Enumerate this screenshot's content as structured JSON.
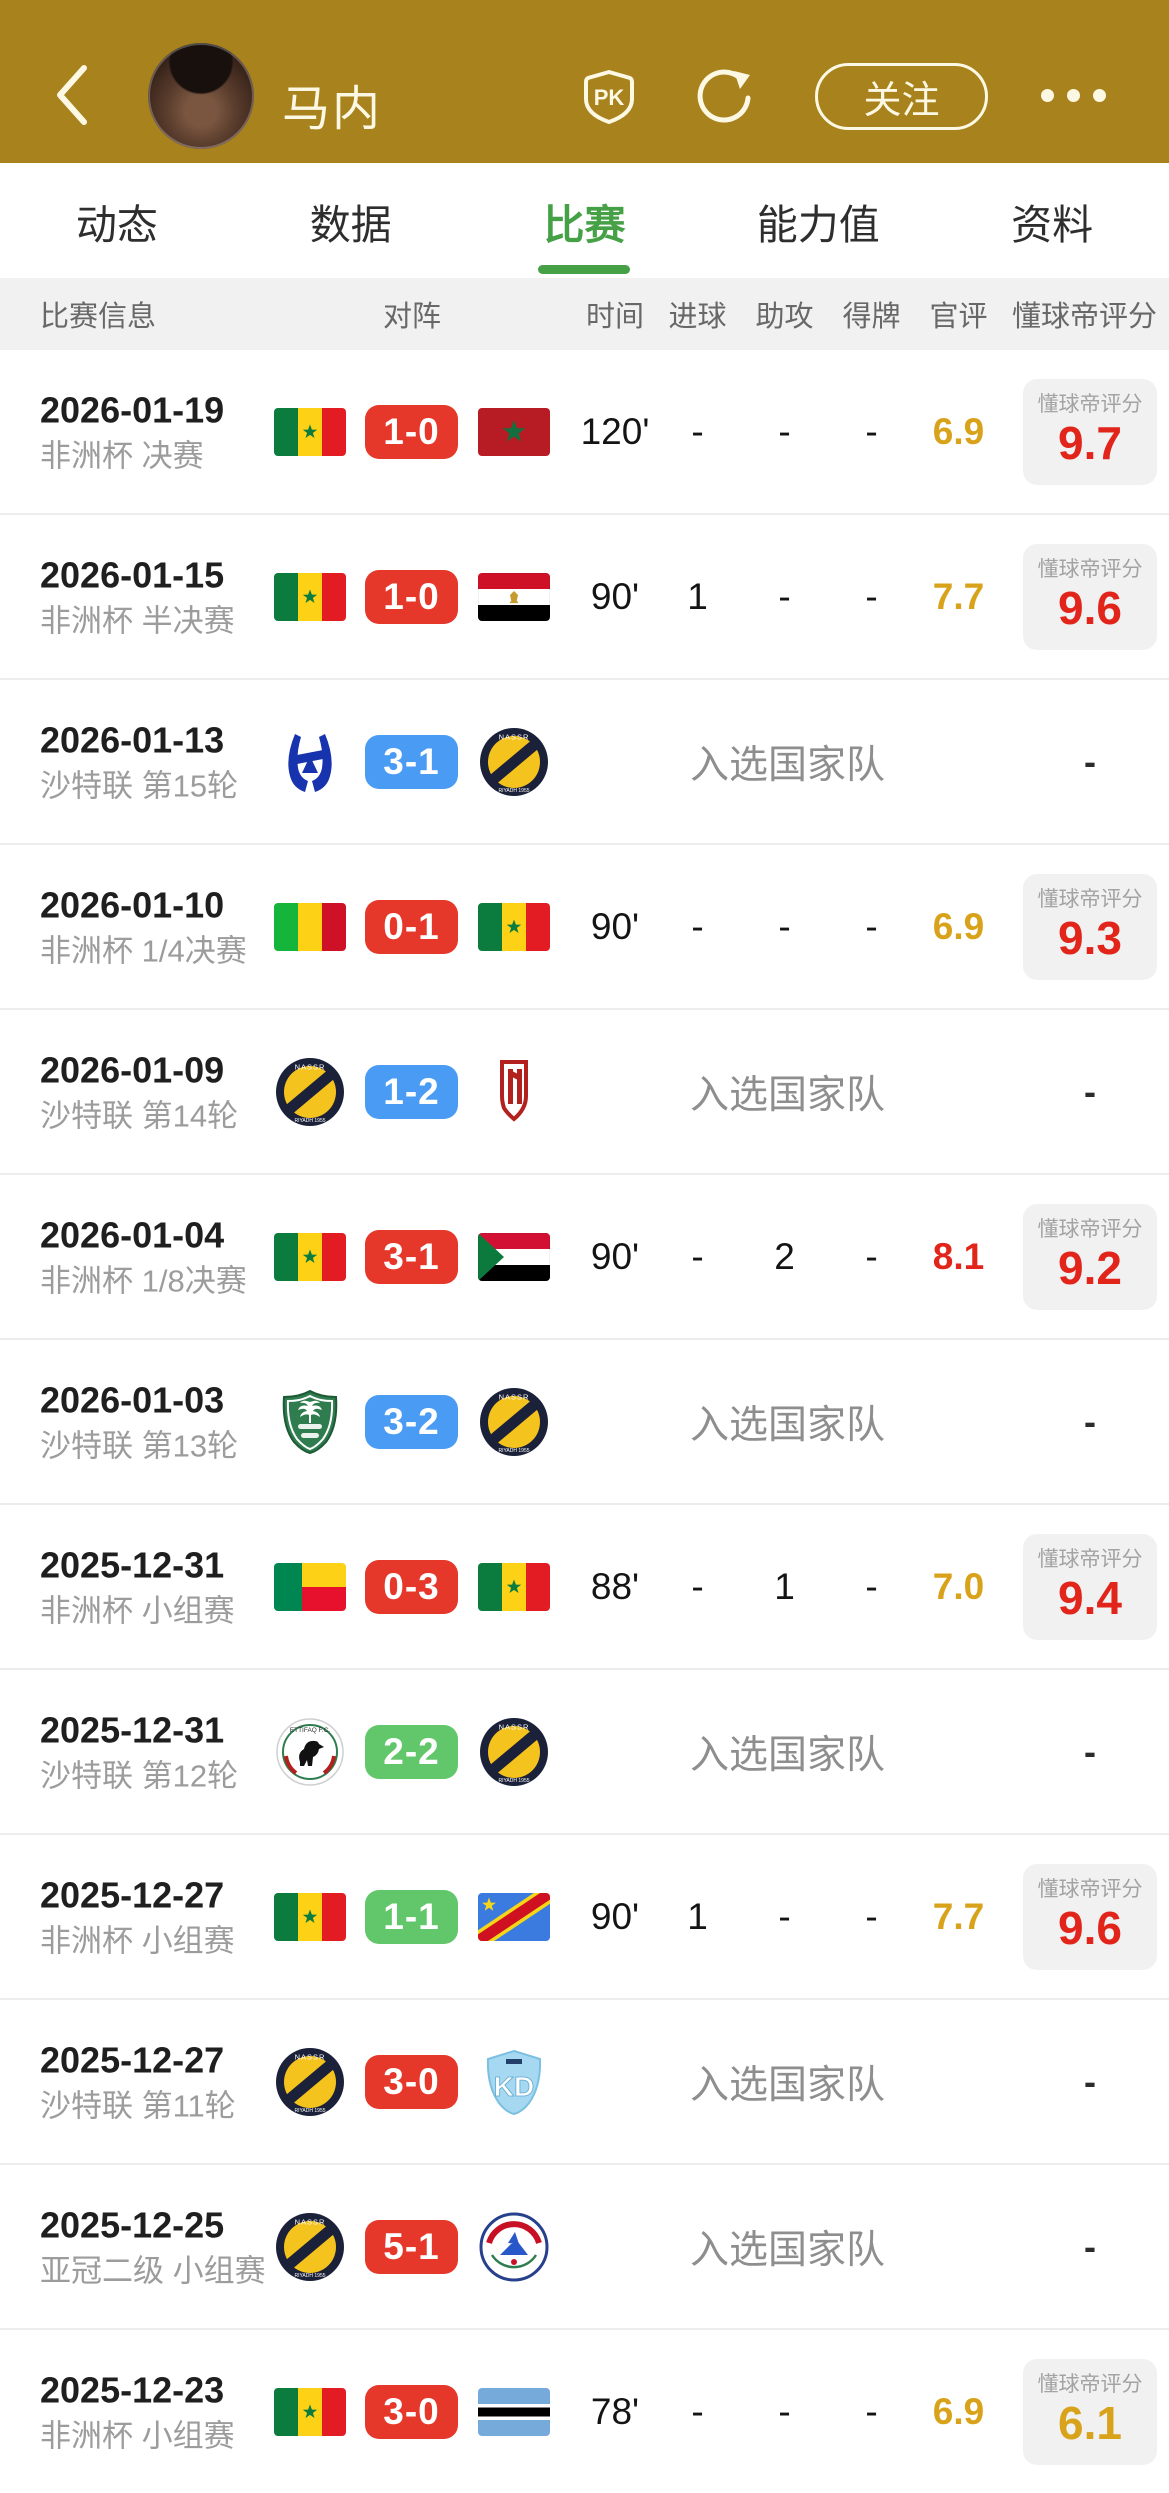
{
  "header": {
    "title": "马内",
    "follow_label": "关注"
  },
  "tabs": {
    "items": [
      "动态",
      "数据",
      "比赛",
      "能力值",
      "资料"
    ],
    "active_index": 2
  },
  "table": {
    "columns": [
      "比赛信息",
      "对阵",
      "时间",
      "进球",
      "助攻",
      "得牌",
      "官评",
      "懂球帝评分"
    ],
    "rating_box_label": "懂球帝评分"
  },
  "colors": {
    "header_bg": "#A8831D",
    "header_text": "#FCF8E3",
    "accent_green": "#45A046",
    "win_badge": "#E6372B",
    "loss_badge": "#4A9BF3",
    "draw_badge": "#62C76A",
    "gold": "#D9A21B",
    "red": "#E1251B"
  },
  "rows": [
    {
      "date": "2026-01-19",
      "competition": "非洲杯 决赛",
      "home_icon": "flag-senegal",
      "away_icon": "flag-morocco",
      "score": "1-0",
      "result": "win",
      "time": "120'",
      "goals": "-",
      "assists": "-",
      "cards": "-",
      "official_rating": "6.9",
      "official_tone": "gold",
      "dqd_rating": "9.7",
      "dqd_tone": "red"
    },
    {
      "date": "2026-01-15",
      "competition": "非洲杯 半决赛",
      "home_icon": "flag-senegal",
      "away_icon": "flag-egypt",
      "score": "1-0",
      "result": "win",
      "time": "90'",
      "goals": "1",
      "assists": "-",
      "cards": "-",
      "official_rating": "7.7",
      "official_tone": "gold",
      "dqd_rating": "9.6",
      "dqd_tone": "red"
    },
    {
      "date": "2026-01-13",
      "competition": "沙特联 第15轮",
      "home_icon": "al-hilal-logo",
      "away_icon": "al-nassr-logo",
      "score": "3-1",
      "result": "loss",
      "national_note": "入选国家队",
      "dqd_rating": "-"
    },
    {
      "date": "2026-01-10",
      "competition": "非洲杯 1/4决赛",
      "home_icon": "flag-mali",
      "away_icon": "flag-senegal",
      "score": "0-1",
      "result": "win",
      "time": "90'",
      "goals": "-",
      "assists": "-",
      "cards": "-",
      "official_rating": "6.9",
      "official_tone": "gold",
      "dqd_rating": "9.3",
      "dqd_tone": "red"
    },
    {
      "date": "2026-01-09",
      "competition": "沙特联 第14轮",
      "home_icon": "al-nassr-logo",
      "away_icon": "red-striped-shield-logo",
      "score": "1-2",
      "result": "loss",
      "national_note": "入选国家队",
      "dqd_rating": "-"
    },
    {
      "date": "2026-01-04",
      "competition": "非洲杯 1/8决赛",
      "home_icon": "flag-senegal",
      "away_icon": "flag-sudan",
      "score": "3-1",
      "result": "win",
      "time": "90'",
      "goals": "-",
      "assists": "2",
      "cards": "-",
      "official_rating": "8.1",
      "official_tone": "red",
      "dqd_rating": "9.2",
      "dqd_tone": "red"
    },
    {
      "date": "2026-01-03",
      "competition": "沙特联 第13轮",
      "home_icon": "green-shield-logo",
      "away_icon": "al-nassr-logo",
      "score": "3-2",
      "result": "loss",
      "national_note": "入选国家队",
      "dqd_rating": "-"
    },
    {
      "date": "2025-12-31",
      "competition": "非洲杯 小组赛",
      "home_icon": "flag-benin",
      "away_icon": "flag-senegal",
      "score": "0-3",
      "result": "win",
      "time": "88'",
      "goals": "-",
      "assists": "1",
      "cards": "-",
      "official_rating": "7.0",
      "official_tone": "gold",
      "dqd_rating": "9.4",
      "dqd_tone": "red"
    },
    {
      "date": "2025-12-31",
      "competition": "沙特联 第12轮",
      "home_icon": "ettifaq-logo",
      "away_icon": "al-nassr-logo",
      "score": "2-2",
      "result": "draw",
      "national_note": "入选国家队",
      "dqd_rating": "-"
    },
    {
      "date": "2025-12-27",
      "competition": "非洲杯 小组赛",
      "home_icon": "flag-senegal",
      "away_icon": "flag-dr-congo",
      "score": "1-1",
      "result": "draw",
      "time": "90'",
      "goals": "1",
      "assists": "-",
      "cards": "-",
      "official_rating": "7.7",
      "official_tone": "gold",
      "dqd_rating": "9.6",
      "dqd_tone": "red"
    },
    {
      "date": "2025-12-27",
      "competition": "沙特联 第11轮",
      "home_icon": "al-nassr-logo",
      "away_icon": "light-blue-shield-logo",
      "score": "3-0",
      "result": "win",
      "national_note": "入选国家队",
      "dqd_rating": "-"
    },
    {
      "date": "2025-12-25",
      "competition": "亚冠二级 小组赛",
      "home_icon": "al-nassr-logo",
      "away_icon": "white-red-blue-crest-logo",
      "score": "5-1",
      "result": "win",
      "national_note": "入选国家队",
      "dqd_rating": "-"
    },
    {
      "date": "2025-12-23",
      "competition": "非洲杯 小组赛",
      "home_icon": "flag-senegal",
      "away_icon": "flag-botswana",
      "score": "3-0",
      "result": "win",
      "time": "78'",
      "goals": "-",
      "assists": "-",
      "cards": "-",
      "official_rating": "6.9",
      "official_tone": "gold",
      "dqd_rating": "6.1",
      "dqd_tone": "gold"
    }
  ]
}
